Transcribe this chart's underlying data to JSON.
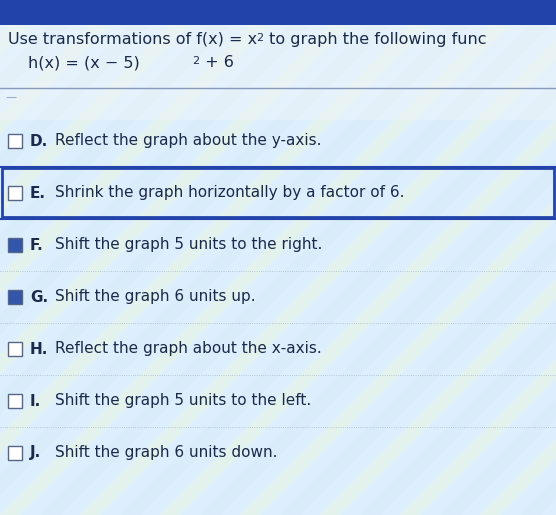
{
  "title_text": "Use transformations of f(x) = x",
  "title_suffix": " to graph the following func",
  "func_text": "h(x) = (x − 5)",
  "func_suffix": " + 6",
  "items": [
    {
      "letter": "D.",
      "text": "Reflect the graph about the y-axis.",
      "checked": false,
      "highlighted": false
    },
    {
      "letter": "E.",
      "text": "Shrink the graph horizontally by a factor of 6.",
      "checked": false,
      "highlighted": true
    },
    {
      "letter": "F.",
      "text": "Shift the graph 5 units to the right.",
      "checked": true,
      "highlighted": false
    },
    {
      "letter": "G.",
      "text": "Shift the graph 6 units up.",
      "checked": true,
      "highlighted": false
    },
    {
      "letter": "H.",
      "text": "Reflect the graph about the x-axis.",
      "checked": false,
      "highlighted": false
    },
    {
      "letter": "I.",
      "text": "Shift the graph 5 units to the left.",
      "checked": false,
      "highlighted": false
    },
    {
      "letter": "J.",
      "text": "Shift the graph 6 units down.",
      "checked": false,
      "highlighted": false
    }
  ],
  "bg_stripe_color1": "#e8f0e0",
  "bg_stripe_color2": "#d0e8f8",
  "text_color": "#1a2a4a",
  "checked_box_color": "#3355aa",
  "unchecked_box_color": "#ffffff",
  "box_border_color": "#556688",
  "highlight_border_color": "#2244aa",
  "separator_color": "#aabbcc",
  "font_size_title": 11.5,
  "font_size_func": 11.5,
  "font_size_items": 11
}
